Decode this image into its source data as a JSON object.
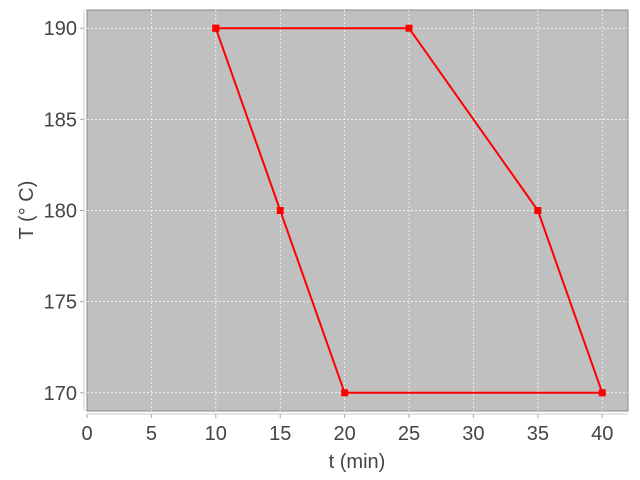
{
  "chart_data": {
    "type": "line",
    "title": "",
    "xlabel": "t (min)",
    "ylabel": "T (° C)",
    "xlim": [
      0,
      42
    ],
    "ylim": [
      169,
      191
    ],
    "xticks": [
      0,
      5,
      10,
      15,
      20,
      25,
      30,
      35,
      40
    ],
    "yticks": [
      170,
      175,
      180,
      185,
      190
    ],
    "grid": true,
    "plot_background": "#c0c0c0",
    "series": [
      {
        "color": "#ff0000",
        "marker": "square",
        "points": [
          [
            10,
            190
          ],
          [
            25,
            190
          ],
          [
            35,
            180
          ],
          [
            40,
            170
          ],
          [
            20,
            170
          ],
          [
            15,
            180
          ],
          [
            10,
            190
          ]
        ]
      }
    ]
  }
}
